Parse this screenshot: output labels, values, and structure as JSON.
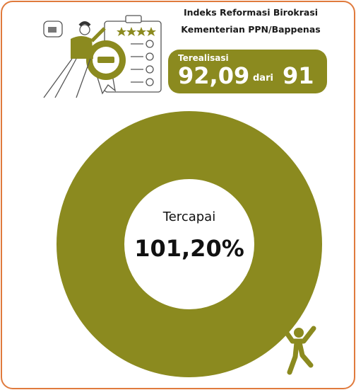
{
  "header": {
    "title_line1": "Indeks Reformasi Birokrasi",
    "title_line2": "Kementerian PPN/Bappenas"
  },
  "realization": {
    "label": "Terealisasi",
    "value": "92,09",
    "connector": "dari",
    "target": "91"
  },
  "achievement": {
    "label": "Tercapai",
    "value": "101,20%"
  }
}
